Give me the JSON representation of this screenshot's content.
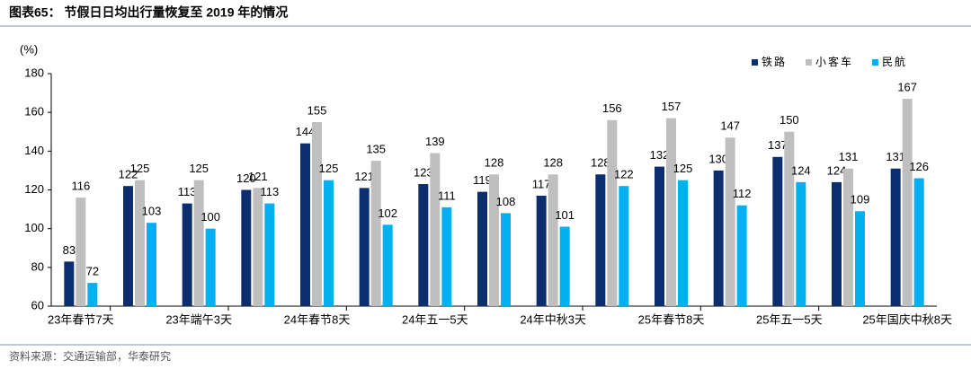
{
  "chart_data": {
    "type": "bar",
    "title": "图表65：  节假日日均出行量恢复至 2019 年的情况",
    "source": "资料来源：交通运输部，华泰研究",
    "y_label": "(%)",
    "categories": [
      "23年春节7天",
      null,
      "23年端午3天",
      null,
      "24年春节8天",
      null,
      "24年五一5天",
      null,
      "24年中秋3天",
      null,
      "25年春节8天",
      null,
      "25年五一5天",
      null,
      "25年国庆中秋8天"
    ],
    "series": [
      {
        "name": "铁路",
        "color": "#0d2e6e",
        "values": [
          83,
          122,
          113,
          120,
          144,
          121,
          123,
          119,
          117,
          128,
          132,
          130,
          137,
          124,
          131
        ]
      },
      {
        "name": "小客车",
        "color": "#bfbfbf",
        "values": [
          116,
          125,
          125,
          121,
          155,
          135,
          139,
          128,
          128,
          156,
          157,
          147,
          150,
          131,
          167
        ]
      },
      {
        "name": "民航",
        "color": "#00b0f0",
        "values": [
          72,
          103,
          100,
          113,
          125,
          102,
          111,
          108,
          101,
          122,
          125,
          112,
          124,
          109,
          126
        ]
      }
    ],
    "ylim": [
      60,
      180
    ],
    "yticks": [
      60,
      80,
      100,
      120,
      140,
      160,
      180
    ],
    "grid": false,
    "legend": "top-right"
  }
}
